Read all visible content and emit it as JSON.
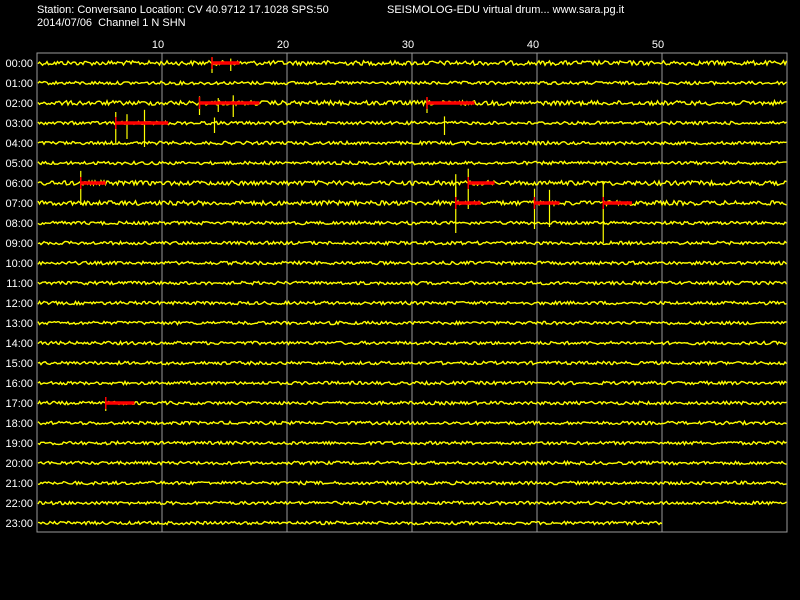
{
  "header": {
    "station_line": "Station: Conversano Location: CV 40.9712 17.1028 SPS:50",
    "date_line": "2014/07/06  Channel 1 N SHN",
    "app_line": "SEISMOLOG-EDU virtual drum... www.sara.pg.it"
  },
  "colors": {
    "background": "#000000",
    "trace": "#ffff00",
    "event": "#ff0000",
    "grid": "#9a9a9a",
    "text": "#ffffff"
  },
  "chart_data": {
    "type": "line",
    "description_free": true,
    "x_ticks": [
      10,
      20,
      30,
      40,
      50
    ],
    "xlim": [
      0,
      60
    ],
    "row_labels": [
      "00:00",
      "01:00",
      "02:00",
      "03:00",
      "04:00",
      "05:00",
      "06:00",
      "07:00",
      "08:00",
      "09:00",
      "10:00",
      "11:00",
      "12:00",
      "13:00",
      "14:00",
      "15:00",
      "16:00",
      "17:00",
      "18:00",
      "19:00",
      "20:00",
      "21:00",
      "22:00",
      "23:00"
    ],
    "last_row_end_minute": 50,
    "events": [
      {
        "row": 0,
        "start": 14.0,
        "end": 16.2
      },
      {
        "row": 2,
        "start": 13.0,
        "end": 17.8
      },
      {
        "row": 2,
        "start": 31.2,
        "end": 35.0
      },
      {
        "row": 3,
        "start": 6.3,
        "end": 10.5
      },
      {
        "row": 6,
        "start": 3.5,
        "end": 5.5
      },
      {
        "row": 6,
        "start": 34.5,
        "end": 36.6
      },
      {
        "row": 7,
        "start": 33.5,
        "end": 35.5
      },
      {
        "row": 7,
        "start": 39.8,
        "end": 41.8
      },
      {
        "row": 7,
        "start": 45.3,
        "end": 47.6
      },
      {
        "row": 17,
        "start": 5.5,
        "end": 7.8
      }
    ],
    "spikes": [
      {
        "row": 0,
        "x": 14.0,
        "amp": 10
      },
      {
        "row": 0,
        "x": 15.5,
        "amp": 8
      },
      {
        "row": 2,
        "x": 13.0,
        "amp": 12
      },
      {
        "row": 2,
        "x": 14.5,
        "amp": 9
      },
      {
        "row": 2,
        "x": 15.7,
        "amp": 14
      },
      {
        "row": 2,
        "x": 31.2,
        "amp": 10
      },
      {
        "row": 3,
        "x": 6.3,
        "amp": 20
      },
      {
        "row": 3,
        "x": 7.2,
        "amp": 16
      },
      {
        "row": 3,
        "x": 8.6,
        "amp": 24
      },
      {
        "row": 3,
        "x": 14.2,
        "amp": 10
      },
      {
        "row": 3,
        "x": 32.6,
        "amp": 12
      },
      {
        "row": 6,
        "x": 3.5,
        "amp": 22
      },
      {
        "row": 6,
        "x": 34.5,
        "amp": 26
      },
      {
        "row": 6,
        "x": 33.5,
        "amp": 16
      },
      {
        "row": 7,
        "x": 33.5,
        "amp": 30
      },
      {
        "row": 7,
        "x": 39.8,
        "amp": 26
      },
      {
        "row": 7,
        "x": 41.0,
        "amp": 24
      },
      {
        "row": 7,
        "x": 45.3,
        "amp": 40
      },
      {
        "row": 17,
        "x": 5.5,
        "amp": 8
      }
    ]
  }
}
